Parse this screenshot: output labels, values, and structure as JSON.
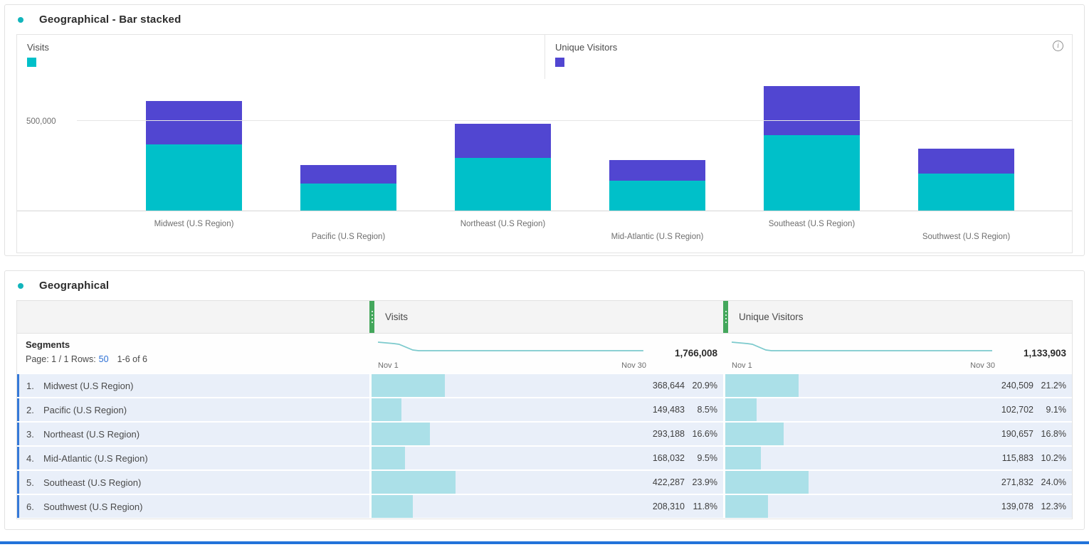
{
  "colors": {
    "visits_teal": "#00c0c9",
    "unique_visitors_purple": "#5146d1",
    "table_bar_teal": "#abe0e8",
    "row_accent_blue": "#3579d8",
    "row_background": "#e9eff9",
    "grip_green": "#44a75c",
    "bottom_bar_blue": "#2273da",
    "panel_dot_teal": "#12b5bc",
    "link_blue": "#2b6fd4"
  },
  "chart_panel": {
    "title": "Geographical - Bar stacked",
    "legend": [
      {
        "label": "Visits"
      },
      {
        "label": "Unique Visitors"
      }
    ],
    "y_gridline_label": "500,000",
    "info_icon_glyph": "i"
  },
  "chart_data": {
    "type": "bar",
    "stacked": true,
    "categories": [
      "Midwest (U.S Region)",
      "Pacific (U.S Region)",
      "Northeast (U.S Region)",
      "Mid-Atlantic (U.S Region)",
      "Southeast (U.S Region)",
      "Southwest (U.S Region)"
    ],
    "series": [
      {
        "name": "Visits",
        "color": "#00c0c9",
        "values": [
          368644,
          149483,
          293188,
          168032,
          422287,
          208310
        ]
      },
      {
        "name": "Unique Visitors",
        "color": "#5146d1",
        "values": [
          240509,
          102702,
          190657,
          115883,
          271832,
          139078
        ]
      }
    ],
    "title": "Geographical - Bar stacked",
    "xlabel": "",
    "ylabel": "",
    "ytick_labels": [
      "500,000"
    ],
    "ylim": [
      0,
      740000
    ],
    "grid": "single horizontal gridline at 500,000",
    "legend_position": "top"
  },
  "table_panel": {
    "title": "Geographical",
    "segments_label": "Segments",
    "page_prefix": "Page: 1 / 1 Rows:",
    "rows_per_page": "50",
    "range_text": "1-6 of 6",
    "columns": [
      {
        "label": "Visits",
        "total": "1,766,008",
        "date_start": "Nov 1",
        "date_end": "Nov 30"
      },
      {
        "label": "Unique Visitors",
        "total": "1,133,903",
        "date_start": "Nov 1",
        "date_end": "Nov 30"
      }
    ],
    "rows": [
      {
        "rank": "1.",
        "name": "Midwest (U.S Region)",
        "visits": "368,644",
        "visits_pct": "20.9%",
        "uv": "240,509",
        "uv_pct": "21.2%"
      },
      {
        "rank": "2.",
        "name": "Pacific (U.S Region)",
        "visits": "149,483",
        "visits_pct": "8.5%",
        "uv": "102,702",
        "uv_pct": "9.1%"
      },
      {
        "rank": "3.",
        "name": "Northeast (U.S Region)",
        "visits": "293,188",
        "visits_pct": "16.6%",
        "uv": "190,657",
        "uv_pct": "16.8%"
      },
      {
        "rank": "4.",
        "name": "Mid-Atlantic (U.S Region)",
        "visits": "168,032",
        "visits_pct": "9.5%",
        "uv": "115,883",
        "uv_pct": "10.2%"
      },
      {
        "rank": "5.",
        "name": "Southeast (U.S Region)",
        "visits": "422,287",
        "visits_pct": "23.9%",
        "uv": "271,832",
        "uv_pct": "24.0%"
      },
      {
        "rank": "6.",
        "name": "Southwest (U.S Region)",
        "visits": "208,310",
        "visits_pct": "11.8%",
        "uv": "139,078",
        "uv_pct": "12.3%"
      }
    ]
  }
}
